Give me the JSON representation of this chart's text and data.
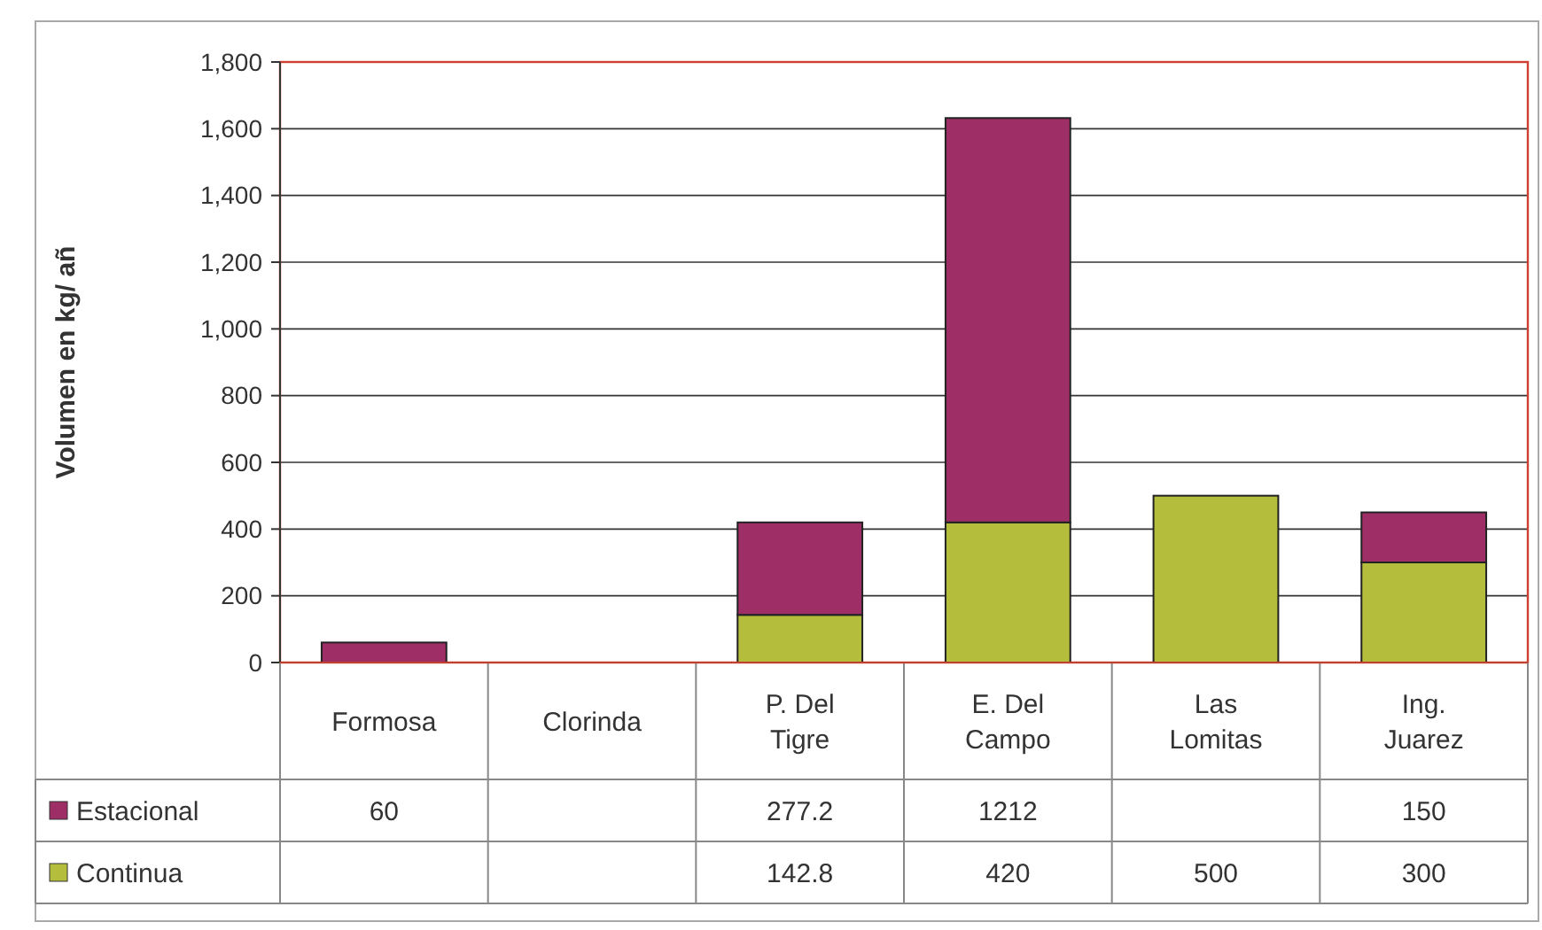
{
  "chart_data": {
    "type": "bar",
    "stacked": true,
    "ylabel": "Volumen en kg/ añ",
    "categories": [
      "Formosa",
      "Clorinda",
      "P. Del Tigre",
      "E. Del Campo",
      "Las Lomitas",
      "Ing. Juarez"
    ],
    "series": [
      {
        "name": "Continua",
        "color": "#b5bd3c",
        "values": [
          null,
          null,
          142.8,
          420,
          500,
          300
        ]
      },
      {
        "name": "Estacional",
        "color": "#9e2f66",
        "values": [
          60,
          null,
          277.2,
          1212,
          null,
          150
        ]
      }
    ],
    "ylim": [
      0,
      1800
    ],
    "yticks": [
      0,
      {
        "value": 200,
        "label": "200"
      },
      {
        "value": 400,
        "label": "400"
      },
      {
        "value": 600,
        "label": "600"
      },
      {
        "value": 800,
        "label": "800"
      },
      {
        "value": 1000,
        "label": "1,000"
      },
      {
        "value": 1200,
        "label": "1,200"
      },
      {
        "value": 1400,
        "label": "1,400"
      },
      {
        "value": 1600,
        "label": "1,600"
      },
      {
        "value": 1800,
        "label": "1,800"
      }
    ],
    "grid": "y",
    "legend": "bottom",
    "data_labels": true
  }
}
